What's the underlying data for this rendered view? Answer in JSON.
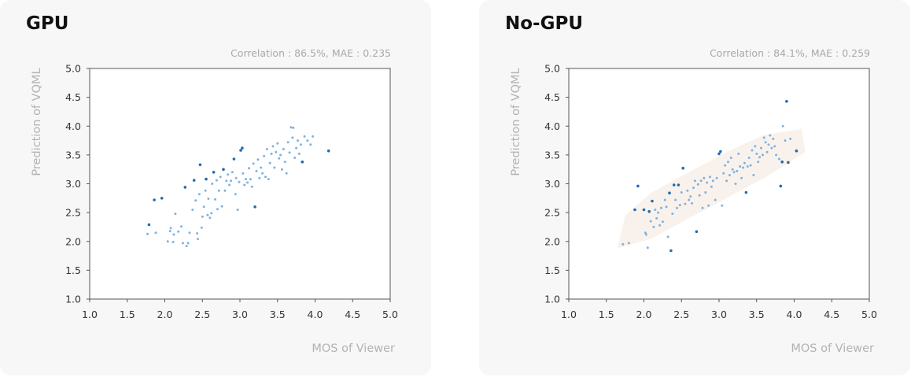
{
  "colors": {
    "point_light": "#7fb3e0",
    "point_dark": "#1f6bb5",
    "confidence_band": "#f9f2ec",
    "plot_border": "#555555",
    "panel_bg": "#f7f7f8"
  },
  "chart_data": [
    {
      "type": "scatter",
      "title": "GPU",
      "stats_text": "Correlation : 86.5%,  MAE : 0.235",
      "xlabel": "MOS of Viewer",
      "ylabel": "Prediction of VQML",
      "xlim": [
        1.0,
        5.0
      ],
      "ylim": [
        1.0,
        5.0
      ],
      "xticks": [
        "1.0",
        "1.5",
        "2.0",
        "2.5",
        "3.0",
        "3.5",
        "4.0",
        "4.5",
        "5.0"
      ],
      "yticks": [
        "1.0",
        "1.5",
        "2.0",
        "2.5",
        "3.0",
        "3.5",
        "4.0",
        "4.5",
        "5.0"
      ],
      "grid": false,
      "band": false,
      "points": [
        [
          1.77,
          2.13
        ],
        [
          1.79,
          2.29
        ],
        [
          1.86,
          2.72
        ],
        [
          1.88,
          2.15
        ],
        [
          1.96,
          2.75
        ],
        [
          2.04,
          2.0
        ],
        [
          2.07,
          2.18
        ],
        [
          2.08,
          2.23
        ],
        [
          2.11,
          1.99
        ],
        [
          2.12,
          2.12
        ],
        [
          2.14,
          2.48
        ],
        [
          2.18,
          2.17
        ],
        [
          2.22,
          2.26
        ],
        [
          2.24,
          1.97
        ],
        [
          2.27,
          2.94
        ],
        [
          2.29,
          1.92
        ],
        [
          2.31,
          1.97
        ],
        [
          2.33,
          2.15
        ],
        [
          2.37,
          2.55
        ],
        [
          2.39,
          3.06
        ],
        [
          2.41,
          2.71
        ],
        [
          2.43,
          2.14
        ],
        [
          2.44,
          2.04
        ],
        [
          2.46,
          2.82
        ],
        [
          2.47,
          3.33
        ],
        [
          2.49,
          2.24
        ],
        [
          2.5,
          2.43
        ],
        [
          2.52,
          2.6
        ],
        [
          2.54,
          2.88
        ],
        [
          2.55,
          3.08
        ],
        [
          2.57,
          2.46
        ],
        [
          2.58,
          2.74
        ],
        [
          2.6,
          2.41
        ],
        [
          2.62,
          2.49
        ],
        [
          2.63,
          3.0
        ],
        [
          2.65,
          3.2
        ],
        [
          2.67,
          2.73
        ],
        [
          2.69,
          3.06
        ],
        [
          2.7,
          2.56
        ],
        [
          2.72,
          2.88
        ],
        [
          2.74,
          3.12
        ],
        [
          2.76,
          2.61
        ],
        [
          2.78,
          3.25
        ],
        [
          2.8,
          2.88
        ],
        [
          2.82,
          3.05
        ],
        [
          2.84,
          3.16
        ],
        [
          2.86,
          2.98
        ],
        [
          2.88,
          3.05
        ],
        [
          2.9,
          3.2
        ],
        [
          2.92,
          3.43
        ],
        [
          2.94,
          2.82
        ],
        [
          2.95,
          3.1
        ],
        [
          2.97,
          2.55
        ],
        [
          2.99,
          3.03
        ],
        [
          3.01,
          3.58
        ],
        [
          3.03,
          3.62
        ],
        [
          3.04,
          3.18
        ],
        [
          3.06,
          2.98
        ],
        [
          3.08,
          3.08
        ],
        [
          3.1,
          3.02
        ],
        [
          3.12,
          3.27
        ],
        [
          3.14,
          3.08
        ],
        [
          3.16,
          2.95
        ],
        [
          3.18,
          3.35
        ],
        [
          3.2,
          2.6
        ],
        [
          3.22,
          3.22
        ],
        [
          3.24,
          3.42
        ],
        [
          3.26,
          3.1
        ],
        [
          3.28,
          3.28
        ],
        [
          3.3,
          3.18
        ],
        [
          3.32,
          3.48
        ],
        [
          3.34,
          3.12
        ],
        [
          3.36,
          3.6
        ],
        [
          3.38,
          3.08
        ],
        [
          3.4,
          3.36
        ],
        [
          3.42,
          3.52
        ],
        [
          3.44,
          3.65
        ],
        [
          3.46,
          3.28
        ],
        [
          3.48,
          3.55
        ],
        [
          3.5,
          3.7
        ],
        [
          3.52,
          3.44
        ],
        [
          3.54,
          3.5
        ],
        [
          3.56,
          3.25
        ],
        [
          3.58,
          3.6
        ],
        [
          3.6,
          3.38
        ],
        [
          3.62,
          3.18
        ],
        [
          3.64,
          3.72
        ],
        [
          3.66,
          3.54
        ],
        [
          3.68,
          3.98
        ],
        [
          3.7,
          3.8
        ],
        [
          3.71,
          3.97
        ],
        [
          3.73,
          3.45
        ],
        [
          3.75,
          3.62
        ],
        [
          3.77,
          3.75
        ],
        [
          3.79,
          3.52
        ],
        [
          3.81,
          3.68
        ],
        [
          3.83,
          3.38
        ],
        [
          3.86,
          3.82
        ],
        [
          3.9,
          3.75
        ],
        [
          3.94,
          3.68
        ],
        [
          3.97,
          3.82
        ],
        [
          4.18,
          3.57
        ]
      ]
    },
    {
      "type": "scatter",
      "title": "No-GPU",
      "stats_text": "Correlation : 84.1%,  MAE : 0.259",
      "xlabel": "MOS of Viewer",
      "ylabel": "Prediction of VQML",
      "xlim": [
        1.0,
        5.0
      ],
      "ylim": [
        1.0,
        5.0
      ],
      "xticks": [
        "1.0",
        "1.5",
        "2.0",
        "2.5",
        "3.0",
        "3.5",
        "4.0",
        "4.5",
        "5.0"
      ],
      "yticks": [
        "1.0",
        "1.5",
        "2.0",
        "2.5",
        "3.0",
        "3.5",
        "4.0",
        "4.5",
        "5.0"
      ],
      "grid": false,
      "band": true,
      "points": [
        [
          1.72,
          1.95
        ],
        [
          1.8,
          1.97
        ],
        [
          1.88,
          2.55
        ],
        [
          1.92,
          2.96
        ],
        [
          2.0,
          2.55
        ],
        [
          2.02,
          2.15
        ],
        [
          2.03,
          2.12
        ],
        [
          2.05,
          1.89
        ],
        [
          2.07,
          2.52
        ],
        [
          2.09,
          2.35
        ],
        [
          2.11,
          2.7
        ],
        [
          2.13,
          2.25
        ],
        [
          2.15,
          2.55
        ],
        [
          2.17,
          2.4
        ],
        [
          2.19,
          2.5
        ],
        [
          2.21,
          2.28
        ],
        [
          2.23,
          2.58
        ],
        [
          2.25,
          2.34
        ],
        [
          2.28,
          2.72
        ],
        [
          2.3,
          2.6
        ],
        [
          2.32,
          2.08
        ],
        [
          2.34,
          2.84
        ],
        [
          2.36,
          1.84
        ],
        [
          2.38,
          2.48
        ],
        [
          2.4,
          2.98
        ],
        [
          2.42,
          2.72
        ],
        [
          2.44,
          2.58
        ],
        [
          2.46,
          2.98
        ],
        [
          2.48,
          2.63
        ],
        [
          2.5,
          2.85
        ],
        [
          2.52,
          3.27
        ],
        [
          2.55,
          2.65
        ],
        [
          2.58,
          2.88
        ],
        [
          2.6,
          2.72
        ],
        [
          2.62,
          2.78
        ],
        [
          2.64,
          2.66
        ],
        [
          2.66,
          2.93
        ],
        [
          2.68,
          3.05
        ],
        [
          2.7,
          2.17
        ],
        [
          2.72,
          2.99
        ],
        [
          2.74,
          2.8
        ],
        [
          2.76,
          3.05
        ],
        [
          2.78,
          2.58
        ],
        [
          2.8,
          3.1
        ],
        [
          2.82,
          2.85
        ],
        [
          2.84,
          3.02
        ],
        [
          2.86,
          2.62
        ],
        [
          2.88,
          3.12
        ],
        [
          2.9,
          2.95
        ],
        [
          2.92,
          3.05
        ],
        [
          2.95,
          2.72
        ],
        [
          2.97,
          3.1
        ],
        [
          3.0,
          3.52
        ],
        [
          3.02,
          3.56
        ],
        [
          3.04,
          2.62
        ],
        [
          3.06,
          3.18
        ],
        [
          3.08,
          3.32
        ],
        [
          3.1,
          3.05
        ],
        [
          3.12,
          3.38
        ],
        [
          3.14,
          3.15
        ],
        [
          3.16,
          3.45
        ],
        [
          3.18,
          3.25
        ],
        [
          3.2,
          3.2
        ],
        [
          3.22,
          3.0
        ],
        [
          3.24,
          3.22
        ],
        [
          3.26,
          3.52
        ],
        [
          3.28,
          3.3
        ],
        [
          3.3,
          3.1
        ],
        [
          3.32,
          3.28
        ],
        [
          3.34,
          3.36
        ],
        [
          3.36,
          2.85
        ],
        [
          3.38,
          3.3
        ],
        [
          3.4,
          3.45
        ],
        [
          3.42,
          3.32
        ],
        [
          3.44,
          3.58
        ],
        [
          3.46,
          3.15
        ],
        [
          3.48,
          3.65
        ],
        [
          3.5,
          3.52
        ],
        [
          3.52,
          3.38
        ],
        [
          3.54,
          3.46
        ],
        [
          3.56,
          3.62
        ],
        [
          3.58,
          3.5
        ],
        [
          3.6,
          3.8
        ],
        [
          3.62,
          3.72
        ],
        [
          3.64,
          3.55
        ],
        [
          3.66,
          3.68
        ],
        [
          3.68,
          3.84
        ],
        [
          3.7,
          3.62
        ],
        [
          3.72,
          3.78
        ],
        [
          3.74,
          3.65
        ],
        [
          3.76,
          3.5
        ],
        [
          3.8,
          3.43
        ],
        [
          3.82,
          2.96
        ],
        [
          3.84,
          3.38
        ],
        [
          3.85,
          4.0
        ],
        [
          3.88,
          3.75
        ],
        [
          3.9,
          4.43
        ],
        [
          3.92,
          3.37
        ],
        [
          3.95,
          3.78
        ],
        [
          4.03,
          3.57
        ]
      ]
    }
  ]
}
